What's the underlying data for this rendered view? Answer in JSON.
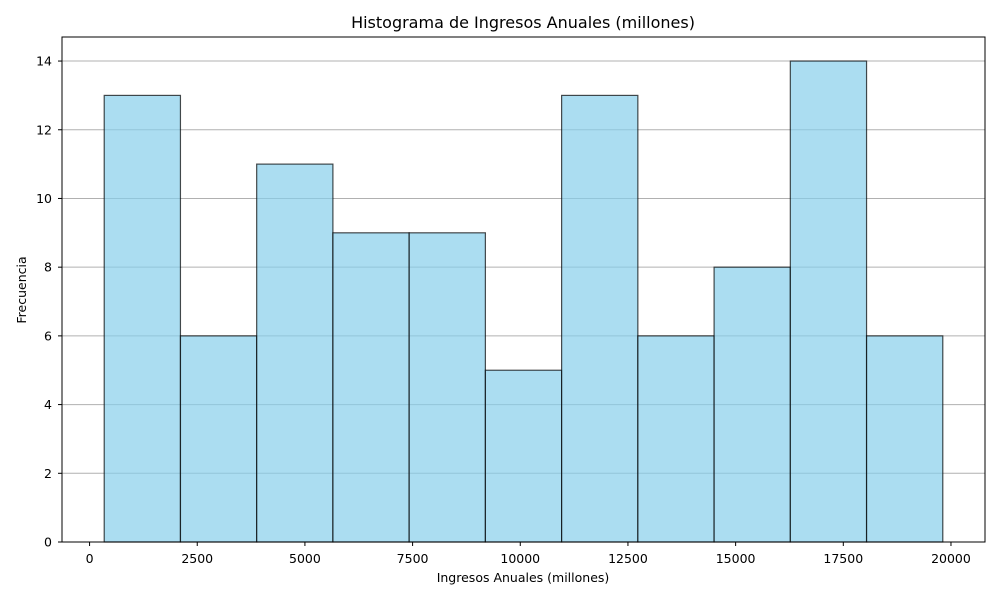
{
  "chart_data": {
    "type": "bar",
    "subtype": "histogram",
    "title": "Histograma de Ingresos Anuales (millones)",
    "xlabel": "Ingresos Anuales (millones)",
    "ylabel": "Frecuencia",
    "bins": [
      {
        "start": 340,
        "end": 2110,
        "count": 13
      },
      {
        "start": 2110,
        "end": 3880,
        "count": 6
      },
      {
        "start": 3880,
        "end": 5650,
        "count": 11
      },
      {
        "start": 5650,
        "end": 7420,
        "count": 9
      },
      {
        "start": 7420,
        "end": 9190,
        "count": 9
      },
      {
        "start": 9190,
        "end": 10960,
        "count": 5
      },
      {
        "start": 10960,
        "end": 12730,
        "count": 13
      },
      {
        "start": 12730,
        "end": 14500,
        "count": 6
      },
      {
        "start": 14500,
        "end": 16270,
        "count": 8
      },
      {
        "start": 16270,
        "end": 18040,
        "count": 14
      },
      {
        "start": 18040,
        "end": 19810,
        "count": 6
      }
    ],
    "xlim": [
      -640,
      20790
    ],
    "ylim": [
      0,
      14.7
    ],
    "x_ticks": [
      0,
      2500,
      5000,
      7500,
      10000,
      12500,
      15000,
      17500,
      20000
    ],
    "y_ticks": [
      0,
      2,
      4,
      6,
      8,
      10,
      12,
      14
    ],
    "grid": "y-axis",
    "colors": {
      "bar_fill": "#87ceeb",
      "bar_edge": "#000000",
      "grid": "#b0b0b0"
    }
  }
}
